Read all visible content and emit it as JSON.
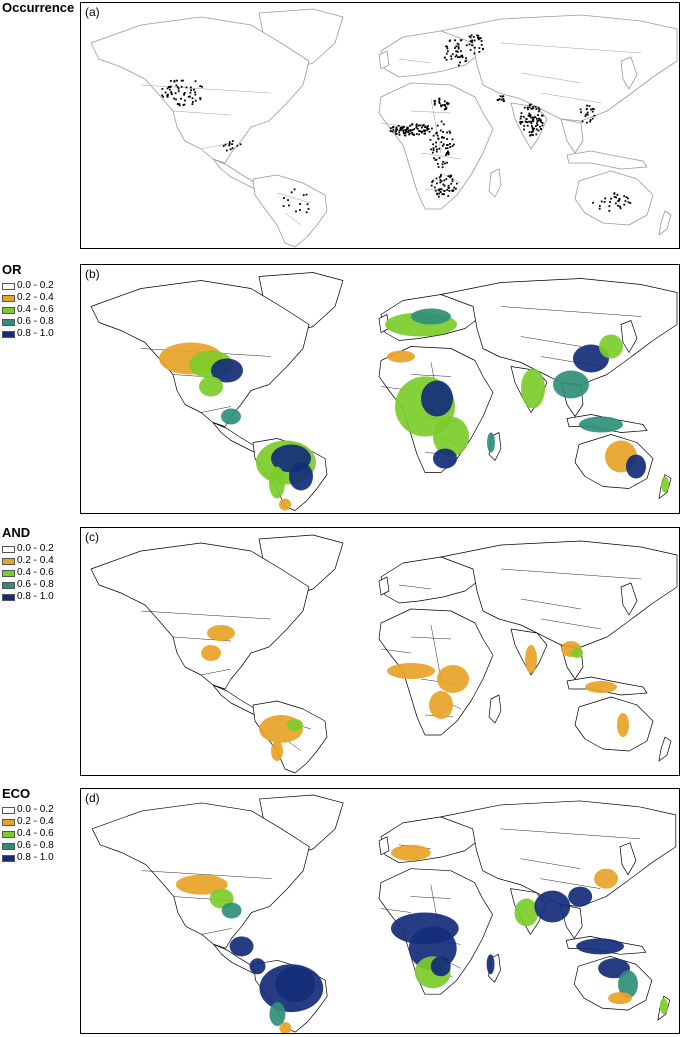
{
  "legend_classes": [
    {
      "label": "0.0 - 0.2",
      "color": "#ffffff"
    },
    {
      "label": "0.2 - 0.4",
      "color": "#e8a327"
    },
    {
      "label": "0.4 - 0.6",
      "color": "#7ccc2a"
    },
    {
      "label": "0.6 - 0.8",
      "color": "#2e8f78"
    },
    {
      "label": "0.8 - 1.0",
      "color": "#142c7a"
    }
  ],
  "panels": [
    {
      "key": "a",
      "title": "Occurrence",
      "label": "(a)",
      "has_legend": false
    },
    {
      "key": "b",
      "title": "OR",
      "label": "(b)",
      "has_legend": true
    },
    {
      "key": "c",
      "title": "AND",
      "label": "(c)",
      "has_legend": true
    },
    {
      "key": "d",
      "title": "ECO",
      "label": "(d)",
      "has_legend": true
    }
  ],
  "colors": {
    "land_outline_a": "#9a9a9a",
    "land_outline": "#000000",
    "occurrence_dot": "#000000"
  }
}
